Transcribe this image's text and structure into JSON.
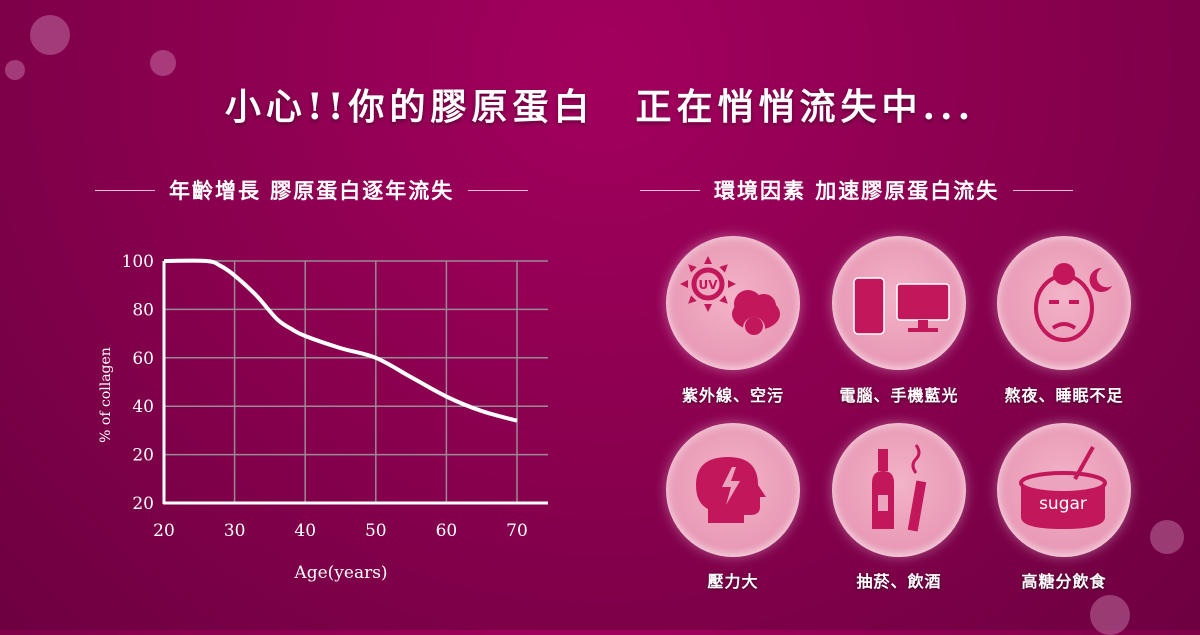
{
  "title": "小心!!你的膠原蛋白　正在悄悄流失中...",
  "left_heading": "年齡增長 膠原蛋白逐年流失",
  "right_heading": "環境因素 加速膠原蛋白流失",
  "chart_data": {
    "type": "line",
    "xlabel": "Age(years)",
    "ylabel": "% of collagen",
    "x_ticks": [
      "20",
      "30",
      "40",
      "50",
      "60",
      "70"
    ],
    "y_ticks": [
      "20",
      "20",
      "40",
      "60",
      "80",
      "100"
    ],
    "xlim": [
      20,
      70
    ],
    "ylim": [
      0,
      100
    ],
    "grid": true,
    "x": [
      20,
      26,
      28,
      30,
      33,
      36,
      38,
      40,
      45,
      50,
      55,
      60,
      65,
      70
    ],
    "y": [
      100,
      100,
      98,
      94,
      86,
      76,
      72,
      69,
      64,
      60,
      52,
      44,
      38,
      34
    ],
    "line_color": "#ffffff"
  },
  "factors": [
    {
      "label": "紫外線、空污",
      "icon": "uv-sun-smog-skull-icon"
    },
    {
      "label": "電腦、手機藍光",
      "icon": "phone-monitor-icon"
    },
    {
      "label": "熬夜、睡眠不足",
      "icon": "tired-face-moon-icon"
    },
    {
      "label": "壓力大",
      "icon": "head-lightning-icon"
    },
    {
      "label": "抽菸、飲酒",
      "icon": "bottle-cigarette-icon"
    },
    {
      "label": "高糖分飲食",
      "icon": "sugar-jar-icon",
      "jar_text": "sugar"
    }
  ],
  "colors": {
    "background": "#8c0050",
    "icon": "#c2185b",
    "bubble": "#eca3bd"
  }
}
